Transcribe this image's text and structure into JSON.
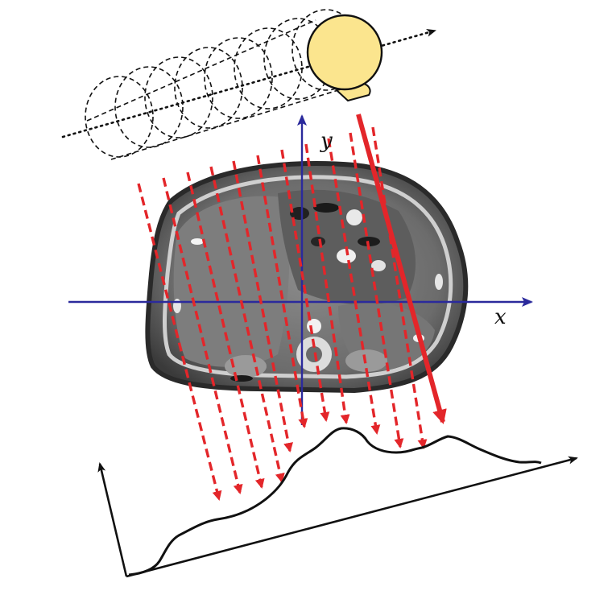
{
  "figure": {
    "description_free": true,
    "axes": {
      "x_label": "x",
      "y_label": "y"
    },
    "colors": {
      "axis": "#2b2a9c",
      "ray": "#e3262a",
      "source": "#fbe58e",
      "source_stroke": "#111111",
      "profile": "#111111",
      "path": "#111111"
    },
    "icons": {
      "x_ray_source": "source-circle-icon",
      "helical_path": "helix-coil-icon",
      "ct_slice": "ct-cross-section-image",
      "projection_profile": "projection-curve"
    }
  }
}
